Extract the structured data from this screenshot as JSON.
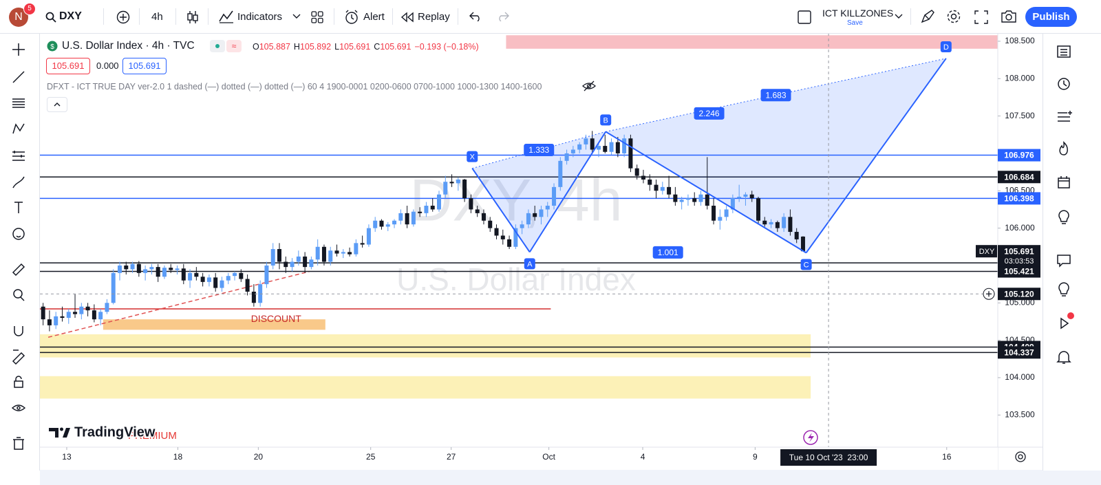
{
  "toolbar": {
    "avatar": "N",
    "badge": "5",
    "symbol": "DXY",
    "interval": "4h",
    "indicators": "Indicators",
    "alert": "Alert",
    "replay": "Replay",
    "layout": "ICT KILLZONES",
    "save": "Save",
    "publish": "Publish"
  },
  "legend": {
    "title": "U.S. Dollar Index · 4h · TVC",
    "ohlc": [
      {
        "key": "O",
        "value": "105.887"
      },
      {
        "key": "H",
        "value": "105.892"
      },
      {
        "key": "L",
        "value": "105.691"
      },
      {
        "key": "C",
        "value": "105.691"
      }
    ],
    "change": "−0.193 (−0.18%)",
    "boxes": [
      "105.691",
      "0.000",
      "105.691"
    ],
    "indicator": "DFXT - ICT TRUE DAY ver-2.0 1 dashed (—) dotted (—) dotted (—) 60 4 1900-0001 0200-0600 0700-1000 1000-1300 1400-1600"
  },
  "chart": {
    "watermark": [
      "DXY, 4h",
      "U.S. Dollar Index"
    ],
    "ylim": [
      103.07,
      108.61
    ],
    "yticks": [
      {
        "value": 103.5,
        "label": "103.500"
      },
      {
        "value": 104,
        "label": "104.000"
      },
      {
        "value": 104.5,
        "label": "104.500"
      },
      {
        "value": 105,
        "label": "105.000"
      },
      {
        "value": 105.5,
        "label": "105.500"
      },
      {
        "value": 106,
        "label": "106.000"
      },
      {
        "value": 106.5,
        "label": "106.500"
      },
      {
        "value": 107,
        "label": "107.000"
      },
      {
        "value": 107.5,
        "label": "107.500"
      },
      {
        "value": 108,
        "label": "108.000"
      },
      {
        "value": 108.5,
        "label": "108.500"
      }
    ],
    "xlim": [
      -0.5,
      149.5
    ],
    "xticks": [
      {
        "value": 3.7,
        "label": "13"
      },
      {
        "value": 21.1,
        "label": "18"
      },
      {
        "value": 33.7,
        "label": "20"
      },
      {
        "value": 51.3,
        "label": "25"
      },
      {
        "value": 63.9,
        "label": "27"
      },
      {
        "value": 79.2,
        "label": "Oct"
      },
      {
        "value": 93.9,
        "label": "4"
      },
      {
        "value": 111.5,
        "label": "9"
      },
      {
        "value": 141.5,
        "label": "16"
      }
    ],
    "up_color": "#5b9cf6",
    "down_color": "#131722",
    "candles": [
      [
        104.95,
        105.0,
        104.7,
        104.78
      ],
      [
        104.78,
        104.9,
        104.62,
        104.7
      ],
      [
        104.7,
        104.88,
        104.65,
        104.82
      ],
      [
        104.82,
        104.95,
        104.75,
        104.8
      ],
      [
        104.8,
        104.92,
        104.72,
        104.88
      ],
      [
        104.88,
        105.12,
        104.8,
        104.85
      ],
      [
        104.85,
        105.0,
        104.78,
        104.95
      ],
      [
        104.95,
        105.0,
        104.82,
        104.9
      ],
      [
        104.9,
        104.98,
        104.74,
        104.78
      ],
      [
        104.78,
        104.92,
        104.7,
        104.88
      ],
      [
        104.88,
        105.05,
        104.85,
        105.0
      ],
      [
        105.0,
        105.45,
        104.98,
        105.4
      ],
      [
        105.4,
        105.55,
        105.3,
        105.5
      ],
      [
        105.5,
        105.55,
        105.38,
        105.45
      ],
      [
        105.45,
        105.55,
        105.4,
        105.52
      ],
      [
        105.52,
        105.56,
        105.35,
        105.4
      ],
      [
        105.4,
        105.5,
        105.3,
        105.45
      ],
      [
        105.45,
        105.52,
        105.38,
        105.48
      ],
      [
        105.48,
        105.52,
        105.28,
        105.35
      ],
      [
        105.35,
        105.5,
        105.32,
        105.47
      ],
      [
        105.47,
        105.52,
        105.4,
        105.44
      ],
      [
        105.44,
        105.5,
        105.38,
        105.46
      ],
      [
        105.46,
        105.52,
        105.25,
        105.3
      ],
      [
        105.3,
        105.45,
        105.2,
        105.4
      ],
      [
        105.4,
        105.48,
        105.3,
        105.35
      ],
      [
        105.35,
        105.4,
        105.22,
        105.28
      ],
      [
        105.28,
        105.38,
        105.22,
        105.34
      ],
      [
        105.34,
        105.4,
        105.15,
        105.2
      ],
      [
        105.2,
        105.35,
        105.15,
        105.3
      ],
      [
        105.3,
        105.4,
        105.25,
        105.36
      ],
      [
        105.36,
        105.42,
        105.3,
        105.4
      ],
      [
        105.4,
        105.45,
        105.28,
        105.32
      ],
      [
        105.32,
        105.38,
        105.1,
        105.15
      ],
      [
        105.15,
        105.25,
        104.95,
        105.0
      ],
      [
        105.0,
        105.3,
        104.95,
        105.25
      ],
      [
        105.25,
        105.55,
        105.2,
        105.5
      ],
      [
        105.5,
        105.8,
        105.45,
        105.72
      ],
      [
        105.72,
        105.8,
        105.45,
        105.55
      ],
      [
        105.55,
        105.62,
        105.4,
        105.48
      ],
      [
        105.48,
        105.6,
        105.42,
        105.55
      ],
      [
        105.55,
        105.7,
        105.5,
        105.62
      ],
      [
        105.62,
        105.68,
        105.4,
        105.48
      ],
      [
        105.48,
        105.62,
        105.45,
        105.58
      ],
      [
        105.58,
        105.85,
        105.5,
        105.75
      ],
      [
        105.75,
        105.78,
        105.5,
        105.55
      ],
      [
        105.55,
        105.75,
        105.5,
        105.7
      ],
      [
        105.7,
        105.78,
        105.62,
        105.66
      ],
      [
        105.66,
        105.72,
        105.6,
        105.68
      ],
      [
        105.68,
        105.74,
        105.62,
        105.65
      ],
      [
        105.65,
        105.85,
        105.62,
        105.8
      ],
      [
        105.8,
        105.9,
        105.74,
        105.78
      ],
      [
        105.78,
        106.05,
        105.75,
        106.0
      ],
      [
        106.0,
        106.15,
        105.95,
        106.1
      ],
      [
        106.1,
        106.12,
        105.98,
        106.02
      ],
      [
        106.02,
        106.08,
        105.96,
        106.05
      ],
      [
        106.05,
        106.12,
        106.0,
        106.1
      ],
      [
        106.1,
        106.25,
        106.05,
        106.2
      ],
      [
        106.2,
        106.3,
        106.0,
        106.05
      ],
      [
        106.05,
        106.25,
        106.02,
        106.22
      ],
      [
        106.22,
        106.28,
        106.15,
        106.2
      ],
      [
        106.2,
        106.35,
        106.15,
        106.3
      ],
      [
        106.3,
        106.4,
        106.22,
        106.25
      ],
      [
        106.25,
        106.5,
        106.22,
        106.45
      ],
      [
        106.45,
        106.7,
        106.4,
        106.62
      ],
      [
        106.62,
        106.72,
        106.55,
        106.6
      ],
      [
        106.6,
        106.68,
        106.5,
        106.65
      ],
      [
        106.65,
        106.66,
        106.35,
        106.4
      ],
      [
        106.4,
        106.45,
        106.2,
        106.25
      ],
      [
        106.25,
        106.3,
        106.15,
        106.2
      ],
      [
        106.2,
        106.25,
        106.05,
        106.1
      ],
      [
        106.1,
        106.15,
        105.95,
        106.0
      ],
      [
        106.0,
        106.05,
        105.85,
        105.9
      ],
      [
        105.9,
        105.98,
        105.78,
        105.85
      ],
      [
        105.85,
        105.9,
        105.72,
        105.75
      ],
      [
        105.75,
        106.05,
        105.72,
        106.0
      ],
      [
        106.0,
        106.1,
        105.92,
        106.05
      ],
      [
        106.05,
        106.25,
        106.0,
        106.2
      ],
      [
        106.2,
        106.3,
        106.1,
        106.15
      ],
      [
        106.15,
        106.3,
        106.05,
        106.25
      ],
      [
        106.25,
        106.35,
        106.15,
        106.3
      ],
      [
        106.3,
        106.6,
        106.25,
        106.55
      ],
      [
        106.55,
        106.95,
        106.5,
        106.9
      ],
      [
        106.9,
        107.05,
        106.85,
        107.0
      ],
      [
        107.0,
        107.1,
        106.95,
        107.05
      ],
      [
        107.05,
        107.15,
        107.0,
        107.12
      ],
      [
        107.12,
        107.25,
        107.05,
        107.2
      ],
      [
        107.2,
        107.3,
        107.0,
        107.05
      ],
      [
        107.05,
        107.15,
        106.95,
        107.1
      ],
      [
        107.1,
        107.25,
        107.0,
        107.02
      ],
      [
        107.02,
        107.2,
        106.98,
        107.15
      ],
      [
        107.15,
        107.22,
        106.95,
        107.0
      ],
      [
        107.0,
        107.25,
        106.95,
        107.2
      ],
      [
        107.2,
        107.25,
        106.75,
        106.8
      ],
      [
        106.8,
        106.85,
        106.65,
        106.7
      ],
      [
        106.7,
        106.78,
        106.6,
        106.65
      ],
      [
        106.65,
        106.72,
        106.5,
        106.58
      ],
      [
        106.58,
        106.65,
        106.4,
        106.5
      ],
      [
        106.5,
        106.62,
        106.45,
        106.55
      ],
      [
        106.55,
        106.7,
        106.4,
        106.45
      ],
      [
        106.45,
        106.55,
        106.3,
        106.35
      ],
      [
        106.35,
        106.42,
        106.25,
        106.38
      ],
      [
        106.38,
        106.45,
        106.3,
        106.4
      ],
      [
        106.4,
        106.48,
        106.3,
        106.35
      ],
      [
        106.35,
        106.5,
        106.3,
        106.45
      ],
      [
        106.45,
        106.95,
        106.25,
        106.3
      ],
      [
        106.3,
        106.4,
        106.05,
        106.1
      ],
      [
        106.1,
        106.25,
        105.98,
        106.15
      ],
      [
        106.15,
        106.3,
        106.1,
        106.25
      ],
      [
        106.25,
        106.45,
        106.2,
        106.4
      ],
      [
        106.4,
        106.58,
        106.35,
        106.42
      ],
      [
        106.42,
        106.48,
        106.3,
        106.45
      ],
      [
        106.45,
        106.5,
        106.35,
        106.4
      ],
      [
        106.4,
        106.42,
        106.05,
        106.1
      ],
      [
        106.1,
        106.15,
        106.02,
        106.05
      ],
      [
        106.05,
        106.12,
        106.0,
        106.08
      ],
      [
        106.08,
        106.1,
        105.95,
        106.0
      ],
      [
        106.0,
        106.2,
        105.95,
        106.15
      ],
      [
        106.15,
        106.25,
        105.9,
        105.95
      ],
      [
        105.95,
        106.0,
        105.8,
        105.85
      ],
      [
        105.887,
        105.892,
        105.691,
        105.691
      ]
    ],
    "levels": [
      {
        "price": 106.976,
        "color": "#2962ff"
      },
      {
        "price": 106.684,
        "color": "#131722"
      },
      {
        "price": 106.398,
        "color": "#2962ff"
      },
      {
        "price": 105.535,
        "color": "#131722"
      },
      {
        "price": 105.421,
        "color": "#131722"
      },
      {
        "price": 104.409,
        "color": "#131722"
      },
      {
        "price": 104.337,
        "color": "#131722"
      }
    ],
    "last_price": {
      "symbol": "DXY",
      "price": 105.691,
      "countdown": "03:03:53"
    },
    "crosshair": {
      "time": 123,
      "price": {
        "value": 105.12,
        "label": "105.120"
      },
      "label": "Tue 10 Oct '23  23:00"
    },
    "zones": [
      {
        "top": 108.58,
        "bottom": 108.4,
        "start": 72.5,
        "end": 149.5,
        "color": "#f7b3b9"
      },
      {
        "top": 104.58,
        "bottom": 104.27,
        "start": -0.5,
        "end": 120.2,
        "color": "#fbeeaa"
      },
      {
        "top": 104.02,
        "bottom": 103.72,
        "start": -0.5,
        "end": 120.2,
        "color": "#fbeeaa"
      }
    ],
    "discount": {
      "text": "DISCOUNT",
      "top": 104.78,
      "bottom": 104.64,
      "start": 9.4,
      "end": 44.2,
      "color": "#f9c98a"
    },
    "red_line": {
      "price": 104.92,
      "start": -0.5,
      "end": 79.5,
      "color": "#d32f2f"
    },
    "trendline": {
      "start": [
        0.8,
        104.54
      ],
      "end": [
        41.7,
        105.42
      ],
      "color": "#e05050"
    },
    "pattern": {
      "color": "#2962ff",
      "points": [
        {
          "label": "X",
          "time": 67.2,
          "price": 106.8
        },
        {
          "label": "A",
          "time": 76.2,
          "price": 105.68
        },
        {
          "label": "B",
          "time": 88.1,
          "price": 107.29
        },
        {
          "label": "C",
          "time": 119.5,
          "price": 105.67
        },
        {
          "label": "D",
          "time": 141.4,
          "price": 108.27
        }
      ],
      "ratios": [
        1.333,
        2.246,
        1.683,
        1.001
      ]
    },
    "brand": "TradingView",
    "premium": "PREMIUM"
  }
}
